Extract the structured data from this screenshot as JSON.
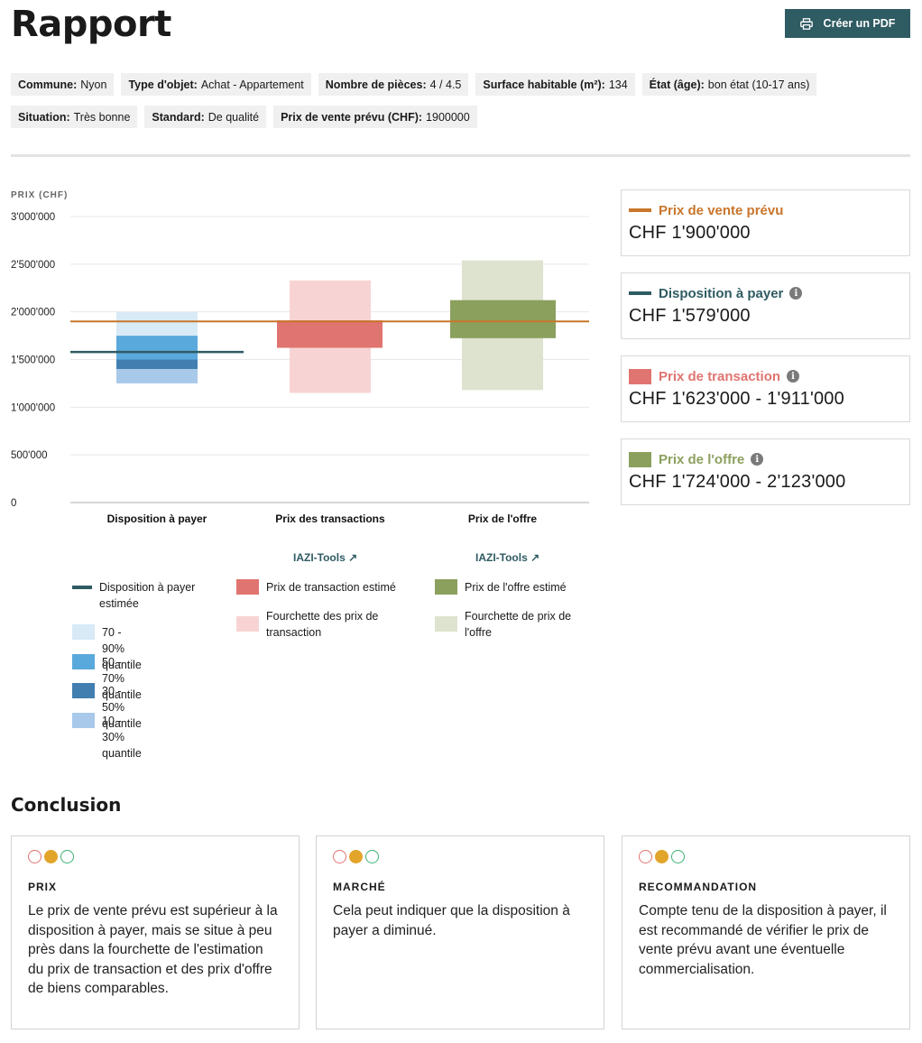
{
  "page": {
    "title": "Rapport",
    "pdf_button": "Créer un PDF"
  },
  "chips": [
    [
      {
        "label": "Commune:",
        "value": "Nyon"
      },
      {
        "label": "Type d'objet:",
        "value": "Achat - Appartement"
      },
      {
        "label": "Nombre de pièces:",
        "value": "4 / 4.5"
      },
      {
        "label": "Surface habitable (m²):",
        "value": "134"
      },
      {
        "label": "État (âge):",
        "value": "bon état (10-17 ans)"
      }
    ],
    [
      {
        "label": "Situation:",
        "value": "Très bonne"
      },
      {
        "label": "Standard:",
        "value": "De qualité"
      },
      {
        "label": "Prix de vente prévu (CHF):",
        "value": "1900000"
      }
    ]
  ],
  "colors": {
    "accent": "#2f5b63",
    "planned_price": "#c8762b",
    "transaction": "#e07470",
    "transaction_range": "#f7d4d3",
    "offer": "#8ca05e",
    "offer_range": "#dde3cf",
    "q70_90": "#d8eaf6",
    "q50_70": "#5aa9dc",
    "q30_50": "#427fb0",
    "q10_30": "#a9c9ea"
  },
  "chart_data": {
    "type": "bar",
    "ylabel": "PRIX (CHF)",
    "ylim": [
      0,
      3000000
    ],
    "yticks": [
      {
        "value": 0,
        "label": "0"
      },
      {
        "value": 500000,
        "label": "500'000"
      },
      {
        "value": 1000000,
        "label": "1'000'000"
      },
      {
        "value": 1500000,
        "label": "1'500'000"
      },
      {
        "value": 2000000,
        "label": "2'000'000"
      },
      {
        "value": 2500000,
        "label": "2'500'000"
      },
      {
        "value": 3000000,
        "label": "3'000'000"
      }
    ],
    "categories": [
      "Disposition à payer",
      "Prix des transactions",
      "Prix de l'offre"
    ],
    "willingness_to_pay": {
      "estimate": 1579000,
      "quantiles": [
        {
          "name": "70 - 90% quantile",
          "low": 1750000,
          "high": 2000000,
          "color": "#d8eaf6"
        },
        {
          "name": "50 - 70% quantile",
          "low": 1500000,
          "high": 1750000,
          "color": "#5aa9dc"
        },
        {
          "name": "30 - 50% quantile",
          "low": 1400000,
          "high": 1500000,
          "color": "#427fb0"
        },
        {
          "name": "10 - 30% quantile",
          "low": 1250000,
          "high": 1400000,
          "color": "#a9c9ea"
        }
      ]
    },
    "transaction": {
      "range": [
        1150000,
        2330000
      ],
      "estimate": [
        1623000,
        1911000
      ]
    },
    "offer": {
      "range": [
        1180000,
        2540000
      ],
      "estimate": [
        1724000,
        2123000
      ]
    },
    "planned_price": 1900000
  },
  "cards": [
    {
      "title": "Prix de vente prévu",
      "value": "CHF 1'900'000",
      "color": "#c8762b",
      "marker": "line",
      "info": false
    },
    {
      "title": "Disposition à payer",
      "value": "CHF 1'579'000",
      "color": "#2f5b63",
      "marker": "line",
      "info": true
    },
    {
      "title": "Prix de transaction",
      "value": "CHF 1'623'000 - 1'911'000",
      "color": "#e07470",
      "marker": "box",
      "info": true
    },
    {
      "title": "Prix de l'offre",
      "value": "CHF 1'724'000 - 2'123'000",
      "color": "#8ca05e",
      "marker": "box",
      "info": true
    }
  ],
  "tools_link": "IAZI-Tools ↗",
  "legend": {
    "wtp_estimate": "Disposition à payer estimée",
    "q70_90": "70 - 90% quantile",
    "q50_70": "50 - 70% quantile",
    "q30_50": "30 - 50% quantile",
    "q10_30": "10 - 30% quantile",
    "transaction_estimate": "Prix de transaction estimé",
    "transaction_range": "Fourchette des prix de transaction",
    "offer_estimate": "Prix de l'offre estimé",
    "offer_range": "Fourchette de prix de l'offre"
  },
  "conclusion": {
    "title": "Conclusion",
    "cards": [
      {
        "heading": "PRIX",
        "text": "Le prix de vente prévu est supérieur à la disposition à payer, mais se situe à peu près dans la fourchette de l'estimation du prix de transaction et des prix d'offre de biens comparables."
      },
      {
        "heading": "MARCHÉ",
        "text": "Cela peut indiquer que la disposition à payer a diminué."
      },
      {
        "heading": "RECOMMANDATION",
        "text": "Compte tenu de la disposition à payer, il est recommandé de vérifier le prix de vente prévu avant une éventuelle commercialisation."
      }
    ],
    "dot_colors": [
      "#e07470",
      "#e2a52a",
      "#3bb174"
    ]
  }
}
